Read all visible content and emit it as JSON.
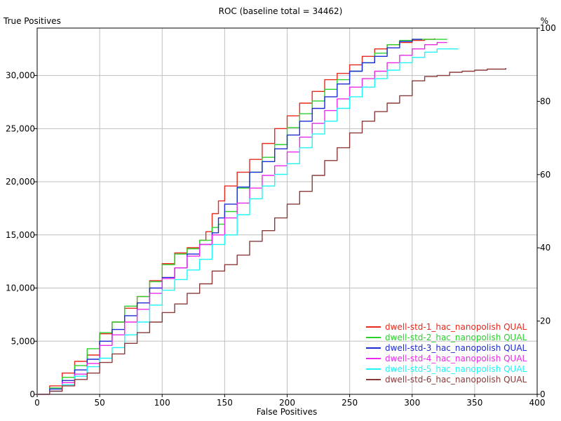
{
  "chart_data": {
    "type": "line",
    "title": "ROC (baseline total = 34462)",
    "xlabel": "False Positives",
    "ylabel": "True Positives",
    "y2label": "%",
    "xlim": [
      0,
      400
    ],
    "ylim": [
      0,
      34462
    ],
    "y2lim": [
      0,
      100
    ],
    "x_ticks": [
      0,
      50,
      100,
      150,
      200,
      250,
      300,
      350,
      400
    ],
    "x_tick_labels": [
      "0",
      "50",
      "100",
      "150",
      "200",
      "250",
      "300",
      "350",
      "400"
    ],
    "y_ticks": [
      0,
      5000,
      10000,
      15000,
      20000,
      25000,
      30000
    ],
    "y_tick_labels": [
      "0",
      "5,000",
      "10,000",
      "15,000",
      "20,000",
      "25,000",
      "30,000"
    ],
    "y2_ticks": [
      0,
      20,
      40,
      60,
      80,
      100
    ],
    "y2_tick_labels": [
      "0",
      "20",
      "40",
      "60",
      "80",
      "100"
    ],
    "grid": true,
    "legend_position": "bottom-right",
    "series": [
      {
        "name": "dwell-std-1_hac_nanopolish QUAL",
        "color": "#e8291c",
        "x": [
          0,
          10,
          20,
          30,
          40,
          50,
          60,
          70,
          80,
          90,
          100,
          110,
          120,
          130,
          135,
          140,
          145,
          150,
          160,
          170,
          180,
          190,
          200,
          210,
          220,
          230,
          240,
          250,
          260,
          270,
          280,
          290,
          300,
          310,
          318
        ],
        "y": [
          0,
          800,
          2000,
          3100,
          3700,
          5700,
          6800,
          8100,
          9200,
          10700,
          12300,
          13300,
          13800,
          14500,
          15300,
          17000,
          18200,
          19600,
          20900,
          22100,
          23600,
          25000,
          26200,
          27400,
          28500,
          29600,
          30200,
          31000,
          31800,
          32500,
          32900,
          33100,
          33300,
          33400,
          33500
        ]
      },
      {
        "name": "dwell-std-2_hac_nanopolish QUAL",
        "color": "#2bd12b",
        "x": [
          0,
          10,
          20,
          30,
          40,
          50,
          60,
          70,
          80,
          90,
          100,
          110,
          120,
          130,
          140,
          145,
          150,
          160,
          170,
          180,
          190,
          200,
          210,
          220,
          230,
          240,
          250,
          260,
          270,
          280,
          290,
          300,
          310,
          328
        ],
        "y": [
          0,
          600,
          1600,
          2700,
          4300,
          5800,
          6800,
          8300,
          9200,
          10600,
          12200,
          13200,
          13700,
          14500,
          15700,
          16000,
          17200,
          19400,
          20900,
          22300,
          23500,
          25100,
          26400,
          27600,
          28700,
          29600,
          30400,
          31200,
          32100,
          32900,
          33300,
          33400,
          33400,
          33400
        ]
      },
      {
        "name": "dwell-std-3_hac_nanopolish QUAL",
        "color": "#1c2bd6",
        "x": [
          0,
          10,
          20,
          30,
          40,
          50,
          60,
          70,
          80,
          90,
          100,
          110,
          120,
          130,
          140,
          145,
          150,
          160,
          170,
          180,
          190,
          200,
          210,
          220,
          230,
          240,
          250,
          260,
          270,
          280,
          290,
          300,
          308
        ],
        "y": [
          0,
          500,
          1300,
          2300,
          3300,
          5000,
          6100,
          7400,
          8600,
          10000,
          11000,
          11900,
          13200,
          14100,
          15200,
          16600,
          17900,
          19500,
          20900,
          21900,
          23100,
          24400,
          25700,
          26900,
          28000,
          29200,
          30400,
          31200,
          31800,
          32600,
          33200,
          33400,
          33400
        ]
      },
      {
        "name": "dwell-std-4_hac_nanopolish QUAL",
        "color": "#e82ae8",
        "x": [
          0,
          10,
          20,
          30,
          40,
          50,
          60,
          70,
          80,
          90,
          100,
          110,
          120,
          130,
          140,
          150,
          160,
          170,
          180,
          190,
          200,
          210,
          220,
          230,
          240,
          250,
          260,
          270,
          280,
          290,
          300,
          310,
          320,
          328
        ],
        "y": [
          0,
          300,
          1100,
          1900,
          2900,
          4600,
          5600,
          6800,
          8000,
          9500,
          10900,
          11900,
          13000,
          14100,
          15000,
          16600,
          18000,
          19400,
          20600,
          21500,
          22800,
          24200,
          25500,
          26700,
          27800,
          28900,
          29700,
          30400,
          31200,
          31900,
          32500,
          32900,
          33100,
          33100
        ]
      },
      {
        "name": "dwell-std-5_hac_nanopolish QUAL",
        "color": "#1ff5f5",
        "x": [
          0,
          10,
          20,
          30,
          40,
          50,
          60,
          70,
          80,
          90,
          100,
          110,
          120,
          130,
          140,
          150,
          160,
          170,
          180,
          190,
          200,
          210,
          220,
          230,
          240,
          250,
          260,
          270,
          280,
          290,
          300,
          310,
          320,
          337
        ],
        "y": [
          0,
          300,
          900,
          1700,
          2600,
          3400,
          4400,
          5600,
          6800,
          8400,
          9800,
          10800,
          11700,
          12700,
          14100,
          15000,
          16900,
          18400,
          19600,
          20700,
          21700,
          23200,
          24500,
          25700,
          26900,
          28000,
          28900,
          29700,
          30500,
          31200,
          31700,
          32200,
          32500,
          32500
        ]
      },
      {
        "name": "dwell-std-6_hac_nanopolish QUAL",
        "color": "#8b3a3a",
        "x": [
          0,
          10,
          20,
          30,
          40,
          50,
          60,
          70,
          80,
          90,
          100,
          110,
          120,
          130,
          140,
          150,
          160,
          170,
          180,
          190,
          200,
          210,
          220,
          230,
          240,
          250,
          260,
          270,
          280,
          290,
          300,
          310,
          320,
          330,
          340,
          350,
          360,
          375
        ],
        "y": [
          0,
          300,
          800,
          1400,
          2000,
          3000,
          3800,
          4800,
          5800,
          6800,
          7700,
          8500,
          9500,
          10400,
          11600,
          12200,
          13100,
          14400,
          15400,
          16600,
          17900,
          19100,
          20600,
          22000,
          23200,
          24600,
          25700,
          26600,
          27400,
          28100,
          29500,
          29900,
          30000,
          30300,
          30400,
          30500,
          30600,
          30700
        ]
      }
    ]
  }
}
